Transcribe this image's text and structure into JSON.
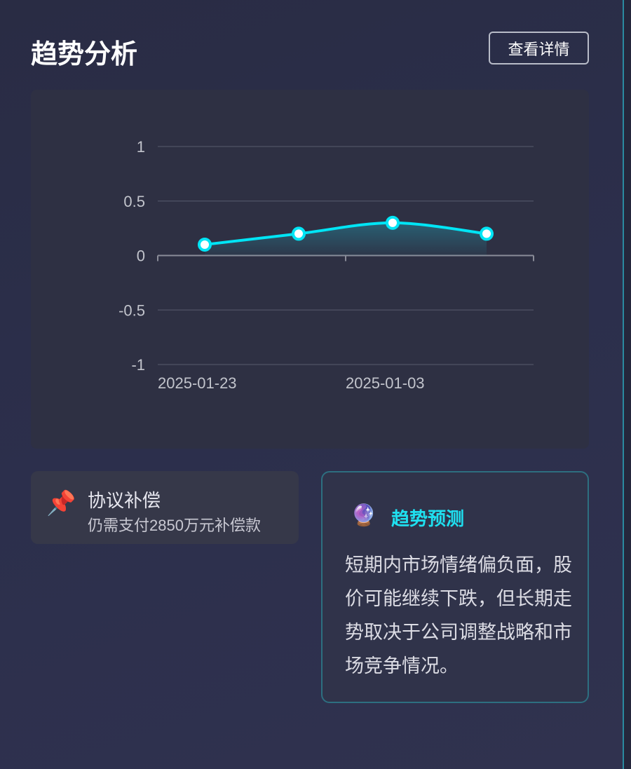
{
  "header": {
    "title": "趋势分析",
    "details_button": "查看详情"
  },
  "chart_data": {
    "type": "line",
    "x_tick_labels": [
      "2025-01-23",
      "2025-01-03"
    ],
    "values": [
      0.1,
      0.2,
      0.3,
      0.2
    ],
    "y_ticks": [
      "1",
      "0.5",
      "0",
      "-0.5",
      "-1"
    ],
    "ylim": [
      -1,
      1
    ],
    "grid": true,
    "smooth": true,
    "area_fill": true,
    "line_color": "#00e5f5"
  },
  "compensation_card": {
    "icon": "pushpin-icon",
    "title": "协议补偿",
    "subtitle": "仍需支付2850万元补偿款"
  },
  "forecast_card": {
    "icon": "crystal-ball-icon",
    "title": "趋势预测",
    "body": "短期内市场情绪偏负面，股价可能继续下跌，但长期走势取决于公司调整战略和市场竞争情况。"
  }
}
